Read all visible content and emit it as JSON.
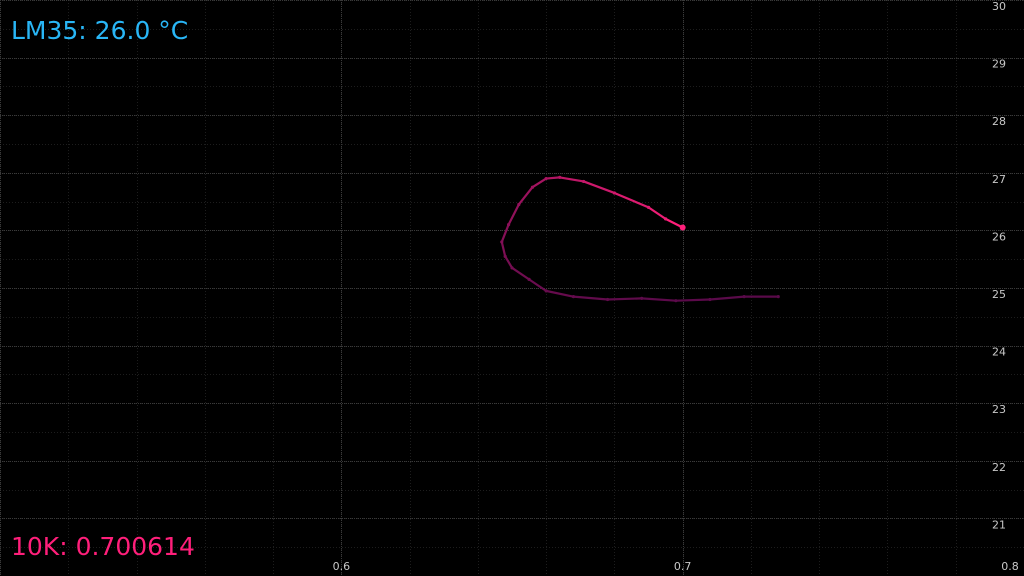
{
  "readouts": {
    "lm35": "LM35: 26.0 °C",
    "ntc": "10K: 0.700614"
  },
  "colors": {
    "background": "#000000",
    "lm35_text": "#29b6f6",
    "ntc_text": "#ff1f7a",
    "trace_old": "#5a0a4a",
    "trace_new": "#ff1f7a",
    "grid_major": "#3a3a3a",
    "grid_minor": "#1d1d1d",
    "tick_text": "#c8c8c8"
  },
  "chart_data": {
    "type": "line",
    "title": "",
    "xlabel": "",
    "ylabel": "",
    "xlim": [
      0.5,
      0.8
    ],
    "ylim": [
      20,
      30
    ],
    "x_ticks": [
      "0.6",
      "0.7",
      "0.8"
    ],
    "y_ticks": [
      "21",
      "22",
      "23",
      "24",
      "25",
      "26",
      "27",
      "28",
      "29",
      "30"
    ],
    "grid": true,
    "series": [
      {
        "x": [
          0.728,
          0.718,
          0.708,
          0.698,
          0.688,
          0.678,
          0.668,
          0.66,
          0.655,
          0.65,
          0.648,
          0.647,
          0.649,
          0.652,
          0.656,
          0.66,
          0.664,
          0.671,
          0.68,
          0.69,
          0.695,
          0.7
        ],
        "y": [
          24.85,
          24.85,
          24.8,
          24.78,
          24.82,
          24.8,
          24.85,
          24.95,
          25.15,
          25.35,
          25.55,
          25.8,
          26.1,
          26.45,
          26.75,
          26.9,
          26.92,
          26.85,
          26.65,
          26.4,
          26.2,
          26.05
        ]
      }
    ]
  }
}
